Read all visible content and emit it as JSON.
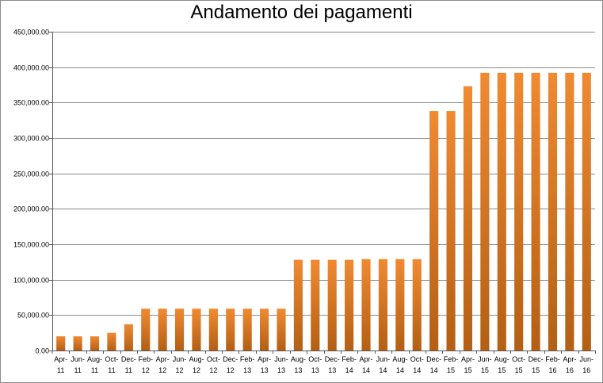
{
  "chart_data": {
    "type": "bar",
    "title": "Andamento dei pagamenti",
    "xlabel": "",
    "ylabel": "",
    "ylim": [
      0,
      450000
    ],
    "yticks": [
      "0.00",
      "50,000.00",
      "100,000.00",
      "150,000.00",
      "200,000.00",
      "250,000.00",
      "300,000.00",
      "350,000.00",
      "400,000.00",
      "450,000.00"
    ],
    "grid": true,
    "legend": "none",
    "bar_color_top": "#f08a32",
    "bar_color_bottom": "#b35f14",
    "categories": [
      [
        "Apr-",
        "11"
      ],
      [
        "Jun-",
        "11"
      ],
      [
        "Aug-",
        "11"
      ],
      [
        "Oct-",
        "11"
      ],
      [
        "Dec-",
        "11"
      ],
      [
        "Feb-",
        "12"
      ],
      [
        "Apr-",
        "12"
      ],
      [
        "Jun-",
        "12"
      ],
      [
        "Aug-",
        "12"
      ],
      [
        "Oct-",
        "12"
      ],
      [
        "Dec-",
        "12"
      ],
      [
        "Feb-",
        "13"
      ],
      [
        "Apr-",
        "13"
      ],
      [
        "Jun-",
        "13"
      ],
      [
        "Aug-",
        "13"
      ],
      [
        "Oct-",
        "13"
      ],
      [
        "Dec-",
        "13"
      ],
      [
        "Feb-",
        "14"
      ],
      [
        "Apr-",
        "14"
      ],
      [
        "Jun-",
        "14"
      ],
      [
        "Aug-",
        "14"
      ],
      [
        "Oct-",
        "14"
      ],
      [
        "Dec-",
        "14"
      ],
      [
        "Feb-",
        "15"
      ],
      [
        "Apr-",
        "15"
      ],
      [
        "Jun-",
        "15"
      ],
      [
        "Aug-",
        "15"
      ],
      [
        "Oct-",
        "15"
      ],
      [
        "Dec-",
        "15"
      ],
      [
        "Feb-",
        "16"
      ],
      [
        "Apr-",
        "16"
      ],
      [
        "Jun-",
        "16"
      ]
    ],
    "values": [
      20000,
      20000,
      20000,
      25000,
      37000,
      59000,
      59000,
      59000,
      59000,
      59000,
      59000,
      59000,
      59000,
      59000,
      128000,
      128000,
      128000,
      128000,
      129000,
      129000,
      129000,
      129000,
      338000,
      338000,
      373000,
      392000,
      392000,
      392000,
      392000,
      392000,
      392000,
      392000
    ]
  }
}
